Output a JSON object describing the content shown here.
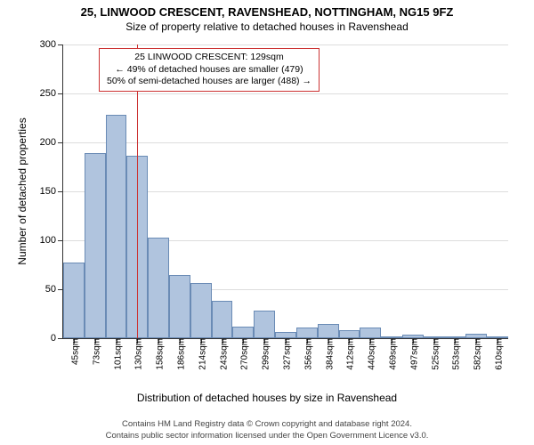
{
  "title_main": "25, LINWOOD CRESCENT, RAVENSHEAD, NOTTINGHAM, NG15 9FZ",
  "title_sub": "Size of property relative to detached houses in Ravenshead",
  "y_axis_title": "Number of detached properties",
  "x_axis_title": "Distribution of detached houses by size in Ravenshead",
  "footer_line1": "Contains HM Land Registry data © Crown copyright and database right 2024.",
  "footer_line2": "Contains public sector information licensed under the Open Government Licence v3.0.",
  "annotation": {
    "line1": "25 LINWOOD CRESCENT: 129sqm",
    "line2": "← 49% of detached houses are smaller (479)",
    "line3": "50% of semi-detached houses are larger (488) →"
  },
  "chart": {
    "type": "histogram",
    "y_max": 300,
    "y_ticks": [
      0,
      50,
      100,
      150,
      200,
      250,
      300
    ],
    "bar_color": "#b0c4de",
    "bar_border": "#6a8bb5",
    "grid_color": "#dddddd",
    "ref_line_color": "#cc3333",
    "ref_value_x": 129,
    "x_labels": [
      "45sqm",
      "73sqm",
      "101sqm",
      "130sqm",
      "158sqm",
      "186sqm",
      "214sqm",
      "243sqm",
      "270sqm",
      "299sqm",
      "327sqm",
      "356sqm",
      "384sqm",
      "412sqm",
      "440sqm",
      "469sqm",
      "497sqm",
      "525sqm",
      "553sqm",
      "582sqm",
      "610sqm"
    ],
    "values": [
      77,
      189,
      228,
      186,
      103,
      65,
      56,
      38,
      12,
      28,
      6,
      11,
      15,
      8,
      11,
      2,
      4,
      0,
      2,
      5,
      0
    ]
  }
}
